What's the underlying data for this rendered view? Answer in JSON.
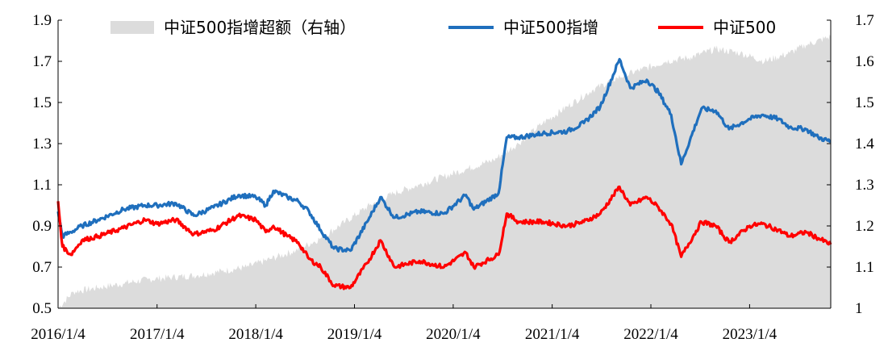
{
  "chart_data": {
    "type": "line",
    "title": "",
    "legend_placement": "top",
    "grid": false,
    "x": [
      "2016/1/4",
      "2017/1/4",
      "2018/1/4",
      "2019/1/4",
      "2020/1/4",
      "2021/1/4",
      "2022/1/4",
      "2023/1/4",
      "2023/10/31"
    ],
    "x_tick_labels": [
      "2016/1/4",
      "2017/1/4",
      "2018/1/4",
      "2019/1/4",
      "2020/1/4",
      "2021/1/4",
      "2022/1/4",
      "2023/1/4"
    ],
    "left_axis": {
      "ylim": [
        0.5,
        1.9
      ],
      "ticks": [
        "0.5",
        "0.7",
        "0.9",
        "1.1",
        "1.3",
        "1.5",
        "1.7",
        "1.9"
      ]
    },
    "right_axis": {
      "ylim": [
        1.0,
        1.7
      ],
      "ticks": [
        "1",
        "1.1",
        "1.2",
        "1.3",
        "1.4",
        "1.5",
        "1.6",
        "1.7"
      ]
    },
    "series": [
      {
        "name": "中证500指增超额（右轴）",
        "type": "area",
        "axis": "right",
        "color": "#dcdcdc",
        "points": [
          [
            "2016/1/4",
            1.0
          ],
          [
            "2016/3/1",
            1.04
          ],
          [
            "2016/6/1",
            1.05
          ],
          [
            "2016/9/1",
            1.06
          ],
          [
            "2016/12/1",
            1.07
          ],
          [
            "2017/3/1",
            1.075
          ],
          [
            "2017/6/1",
            1.08
          ],
          [
            "2017/9/1",
            1.09
          ],
          [
            "2017/12/1",
            1.1
          ],
          [
            "2018/3/1",
            1.12
          ],
          [
            "2018/6/1",
            1.14
          ],
          [
            "2018/9/1",
            1.17
          ],
          [
            "2018/12/1",
            1.21
          ],
          [
            "2019/3/1",
            1.25
          ],
          [
            "2019/6/1",
            1.28
          ],
          [
            "2019/9/1",
            1.3
          ],
          [
            "2019/12/1",
            1.32
          ],
          [
            "2020/3/1",
            1.34
          ],
          [
            "2020/6/1",
            1.36
          ],
          [
            "2020/9/1",
            1.4
          ],
          [
            "2020/12/1",
            1.45
          ],
          [
            "2021/3/1",
            1.49
          ],
          [
            "2021/6/1",
            1.53
          ],
          [
            "2021/9/1",
            1.56
          ],
          [
            "2021/12/1",
            1.58
          ],
          [
            "2022/3/1",
            1.6
          ],
          [
            "2022/6/1",
            1.61
          ],
          [
            "2022/9/1",
            1.63
          ],
          [
            "2022/12/1",
            1.62
          ],
          [
            "2023/3/1",
            1.6
          ],
          [
            "2023/6/1",
            1.62
          ],
          [
            "2023/8/1",
            1.64
          ],
          [
            "2023/10/31",
            1.66
          ]
        ]
      },
      {
        "name": "中证500指增",
        "type": "line",
        "axis": "left",
        "color": "#1f6fbd",
        "points": [
          [
            "2016/1/4",
            0.97
          ],
          [
            "2016/1/20",
            0.85
          ],
          [
            "2016/2/20",
            0.87
          ],
          [
            "2016/4/1",
            0.9
          ],
          [
            "2016/6/1",
            0.93
          ],
          [
            "2016/9/1",
            0.98
          ],
          [
            "2016/11/20",
            1.0
          ],
          [
            "2017/1/4",
            1.0
          ],
          [
            "2017/3/15",
            1.01
          ],
          [
            "2017/5/20",
            0.95
          ],
          [
            "2017/8/1",
            0.99
          ],
          [
            "2017/11/1",
            1.05
          ],
          [
            "2018/1/4",
            1.04
          ],
          [
            "2018/2/10",
            1.0
          ],
          [
            "2018/3/10",
            1.07
          ],
          [
            "2018/5/1",
            1.04
          ],
          [
            "2018/6/10",
            1.02
          ],
          [
            "2018/7/20",
            0.97
          ],
          [
            "2018/9/1",
            0.88
          ],
          [
            "2018/10/20",
            0.79
          ],
          [
            "2018/12/20",
            0.78
          ],
          [
            "2019/2/20",
            0.92
          ],
          [
            "2019/4/10",
            1.04
          ],
          [
            "2019/6/1",
            0.94
          ],
          [
            "2019/9/1",
            0.97
          ],
          [
            "2019/12/1",
            0.96
          ],
          [
            "2020/2/20",
            1.05
          ],
          [
            "2020/3/20",
            0.98
          ],
          [
            "2020/6/20",
            1.06
          ],
          [
            "2020/7/20",
            1.33
          ],
          [
            "2020/9/1",
            1.33
          ],
          [
            "2020/12/1",
            1.35
          ],
          [
            "2021/3/1",
            1.36
          ],
          [
            "2021/5/1",
            1.4
          ],
          [
            "2021/7/1",
            1.48
          ],
          [
            "2021/9/10",
            1.71
          ],
          [
            "2021/10/20",
            1.57
          ],
          [
            "2021/12/20",
            1.61
          ],
          [
            "2022/2/1",
            1.55
          ],
          [
            "2022/3/20",
            1.44
          ],
          [
            "2022/4/26",
            1.2
          ],
          [
            "2022/7/10",
            1.47
          ],
          [
            "2022/9/1",
            1.46
          ],
          [
            "2022/10/20",
            1.37
          ],
          [
            "2023/1/4",
            1.42
          ],
          [
            "2023/2/20",
            1.44
          ],
          [
            "2023/4/20",
            1.42
          ],
          [
            "2023/6/1",
            1.38
          ],
          [
            "2023/8/1",
            1.37
          ],
          [
            "2023/9/15",
            1.33
          ],
          [
            "2023/10/31",
            1.31
          ]
        ]
      },
      {
        "name": "中证500",
        "type": "line",
        "axis": "left",
        "color": "#ff0000",
        "points": [
          [
            "2016/1/4",
            1.02
          ],
          [
            "2016/1/20",
            0.8
          ],
          [
            "2016/2/20",
            0.76
          ],
          [
            "2016/4/1",
            0.83
          ],
          [
            "2016/6/1",
            0.85
          ],
          [
            "2016/9/1",
            0.89
          ],
          [
            "2016/11/20",
            0.93
          ],
          [
            "2017/1/4",
            0.91
          ],
          [
            "2017/3/15",
            0.93
          ],
          [
            "2017/5/20",
            0.86
          ],
          [
            "2017/8/1",
            0.88
          ],
          [
            "2017/11/1",
            0.95
          ],
          [
            "2018/1/4",
            0.93
          ],
          [
            "2018/2/10",
            0.87
          ],
          [
            "2018/3/10",
            0.9
          ],
          [
            "2018/5/1",
            0.85
          ],
          [
            "2018/6/10",
            0.82
          ],
          [
            "2018/7/20",
            0.74
          ],
          [
            "2018/9/1",
            0.7
          ],
          [
            "2018/10/20",
            0.61
          ],
          [
            "2018/12/20",
            0.6
          ],
          [
            "2019/2/20",
            0.72
          ],
          [
            "2019/4/10",
            0.83
          ],
          [
            "2019/6/1",
            0.7
          ],
          [
            "2019/9/1",
            0.73
          ],
          [
            "2019/12/1",
            0.7
          ],
          [
            "2020/2/20",
            0.77
          ],
          [
            "2020/3/20",
            0.7
          ],
          [
            "2020/6/20",
            0.76
          ],
          [
            "2020/7/20",
            0.96
          ],
          [
            "2020/9/1",
            0.92
          ],
          [
            "2020/12/1",
            0.92
          ],
          [
            "2021/3/1",
            0.9
          ],
          [
            "2021/5/1",
            0.92
          ],
          [
            "2021/7/1",
            0.96
          ],
          [
            "2021/9/10",
            1.09
          ],
          [
            "2021/10/20",
            1.0
          ],
          [
            "2021/12/20",
            1.04
          ],
          [
            "2022/2/1",
            0.99
          ],
          [
            "2022/3/20",
            0.91
          ],
          [
            "2022/4/26",
            0.75
          ],
          [
            "2022/7/10",
            0.92
          ],
          [
            "2022/9/1",
            0.9
          ],
          [
            "2022/10/20",
            0.82
          ],
          [
            "2023/1/4",
            0.9
          ],
          [
            "2023/2/20",
            0.91
          ],
          [
            "2023/4/20",
            0.88
          ],
          [
            "2023/6/1",
            0.85
          ],
          [
            "2023/8/1",
            0.87
          ],
          [
            "2023/9/15",
            0.84
          ],
          [
            "2023/10/31",
            0.81
          ]
        ]
      }
    ]
  }
}
